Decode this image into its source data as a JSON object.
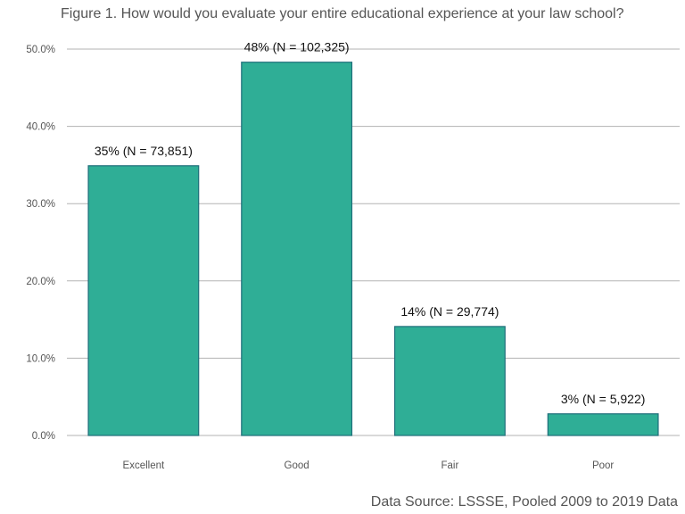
{
  "chart_data": {
    "type": "bar",
    "title": "Figure 1. How would you evaluate your entire educational experience at your law school?",
    "caption": "Data Source: LSSSE, Pooled 2009 to 2019 Data",
    "xlabel": "",
    "ylabel": "",
    "categories": [
      "Excellent",
      "Good",
      "Fair",
      "Poor"
    ],
    "values": [
      0.349,
      0.483,
      0.141,
      0.028
    ],
    "bar_labels": [
      "35% (N = 73,851)",
      "48% (N = 102,325)",
      "14% (N = 29,774)",
      "3% (N = 5,922)"
    ],
    "ylim": [
      0,
      0.5
    ],
    "yticks": [
      0,
      0.1,
      0.2,
      0.3,
      0.4,
      0.5
    ],
    "ytick_labels": [
      "0.0%",
      "10.0%",
      "20.0%",
      "30.0%",
      "40.0%",
      "50.0%"
    ],
    "grid": true,
    "colors": {
      "bar_fill": "#2fae96",
      "bar_stroke": "#1f6e7a"
    }
  }
}
